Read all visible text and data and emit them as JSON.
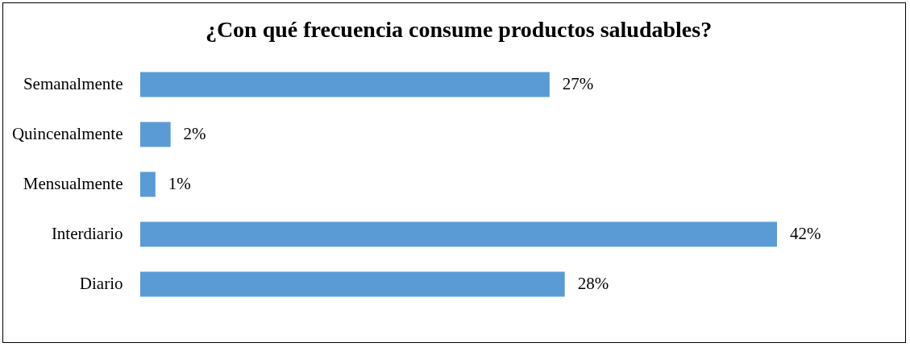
{
  "chart_data": {
    "type": "bar",
    "orientation": "horizontal",
    "title": "¿Con qué frecuencia consume productos saludables?",
    "categories": [
      "Semanalmente",
      "Quincenalmente",
      "Mensualmente",
      "Interdiario",
      "Diario"
    ],
    "values": [
      27,
      2,
      1,
      42,
      28
    ],
    "value_labels": [
      "27%",
      "2%",
      "1%",
      "42%",
      "28%"
    ],
    "color": "#5b9bd5"
  }
}
